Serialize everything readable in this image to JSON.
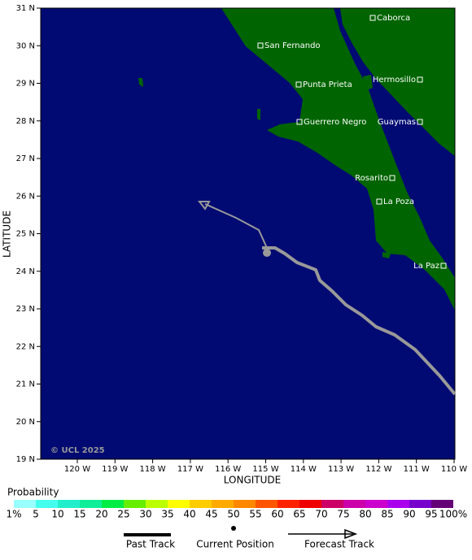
{
  "map": {
    "copyright": "© UCL 2025",
    "x_axis_title": "LONGITUDE",
    "y_axis_title": "LATITUDE",
    "lon_ticks": [
      "120 W",
      "119 W",
      "118 W",
      "117 W",
      "116 W",
      "115 W",
      "114 W",
      "113 W",
      "112 W",
      "111 W",
      "110 W"
    ],
    "lat_ticks": [
      "31 N",
      "30 N",
      "29 N",
      "28 N",
      "27 N",
      "26 N",
      "25 N",
      "24 N",
      "23 N",
      "22 N",
      "21 N",
      "20 N",
      "19 N"
    ],
    "places": [
      "Caborca",
      "San Fernando",
      "Hermosillo",
      "Punta Prieta",
      "Guerrero Negro",
      "Guaymas",
      "Rosarito",
      "La Poza",
      "La Paz"
    ]
  },
  "probability_legend": {
    "title": "Probability",
    "labels": [
      "1%",
      "5",
      "10",
      "15",
      "20",
      "25",
      "30",
      "35",
      "40",
      "45",
      "50",
      "55",
      "60",
      "65",
      "70",
      "75",
      "80",
      "85",
      "90",
      "95",
      "100%"
    ],
    "colors": [
      "#99ffff",
      "#44ffee",
      "#22eecc",
      "#11ee99",
      "#00ee44",
      "#66ee00",
      "#bbff00",
      "#ffff00",
      "#ffcc00",
      "#ffaa00",
      "#ff8800",
      "#ff5500",
      "#ff2200",
      "#ee0000",
      "#cc0066",
      "#cc00aa",
      "#cc00cc",
      "#aa00ee",
      "#7700cc",
      "#660077"
    ]
  },
  "track_legend": {
    "past": "Past Track",
    "current": "Current Position",
    "forecast": "Forecast Track"
  }
}
